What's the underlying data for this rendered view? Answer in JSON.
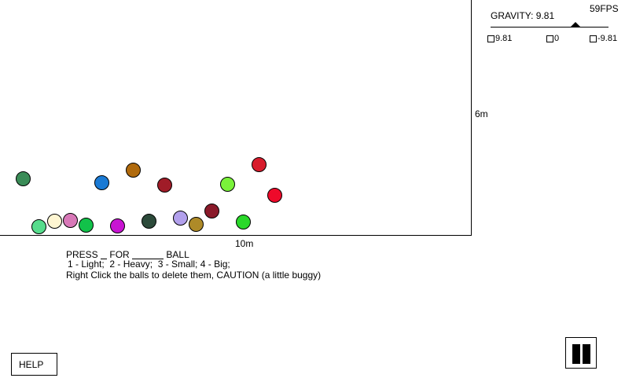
{
  "fps_label": "59FPS",
  "gravity": {
    "title": "GRAVITY: 9.81",
    "value": 9.81,
    "presets": [
      "9.81",
      "0",
      "-9.81"
    ]
  },
  "axis": {
    "x_label": "10m",
    "y_label": "6m"
  },
  "instructions": {
    "line1_press": "PRESS",
    "line1_for": "FOR",
    "line1_ball": "BALL",
    "line2": "1 - Light;  2 - Heavy;  3 - Small; 4 - Big;",
    "line3": "Right Click the balls to delete them, CAUTION (a little buggy)"
  },
  "buttons": {
    "help": "HELP"
  },
  "balls": [
    {
      "color": "#3a8c57"
    },
    {
      "color": "#1a7ad4"
    },
    {
      "color": "#b06a0c"
    },
    {
      "color": "#a01c28"
    },
    {
      "color": "#7af23a"
    },
    {
      "color": "#d81c2c"
    },
    {
      "color": "#ee0a2a"
    },
    {
      "color": "#56dc8c"
    },
    {
      "color": "#fff6d2"
    },
    {
      "color": "#d878b8"
    },
    {
      "color": "#12c24a"
    },
    {
      "color": "#c814d2"
    },
    {
      "color": "#2c4a3a"
    },
    {
      "color": "#b2a0ec"
    },
    {
      "color": "#ae8a28"
    },
    {
      "color": "#8a1a2a"
    },
    {
      "color": "#2ad82a"
    }
  ]
}
